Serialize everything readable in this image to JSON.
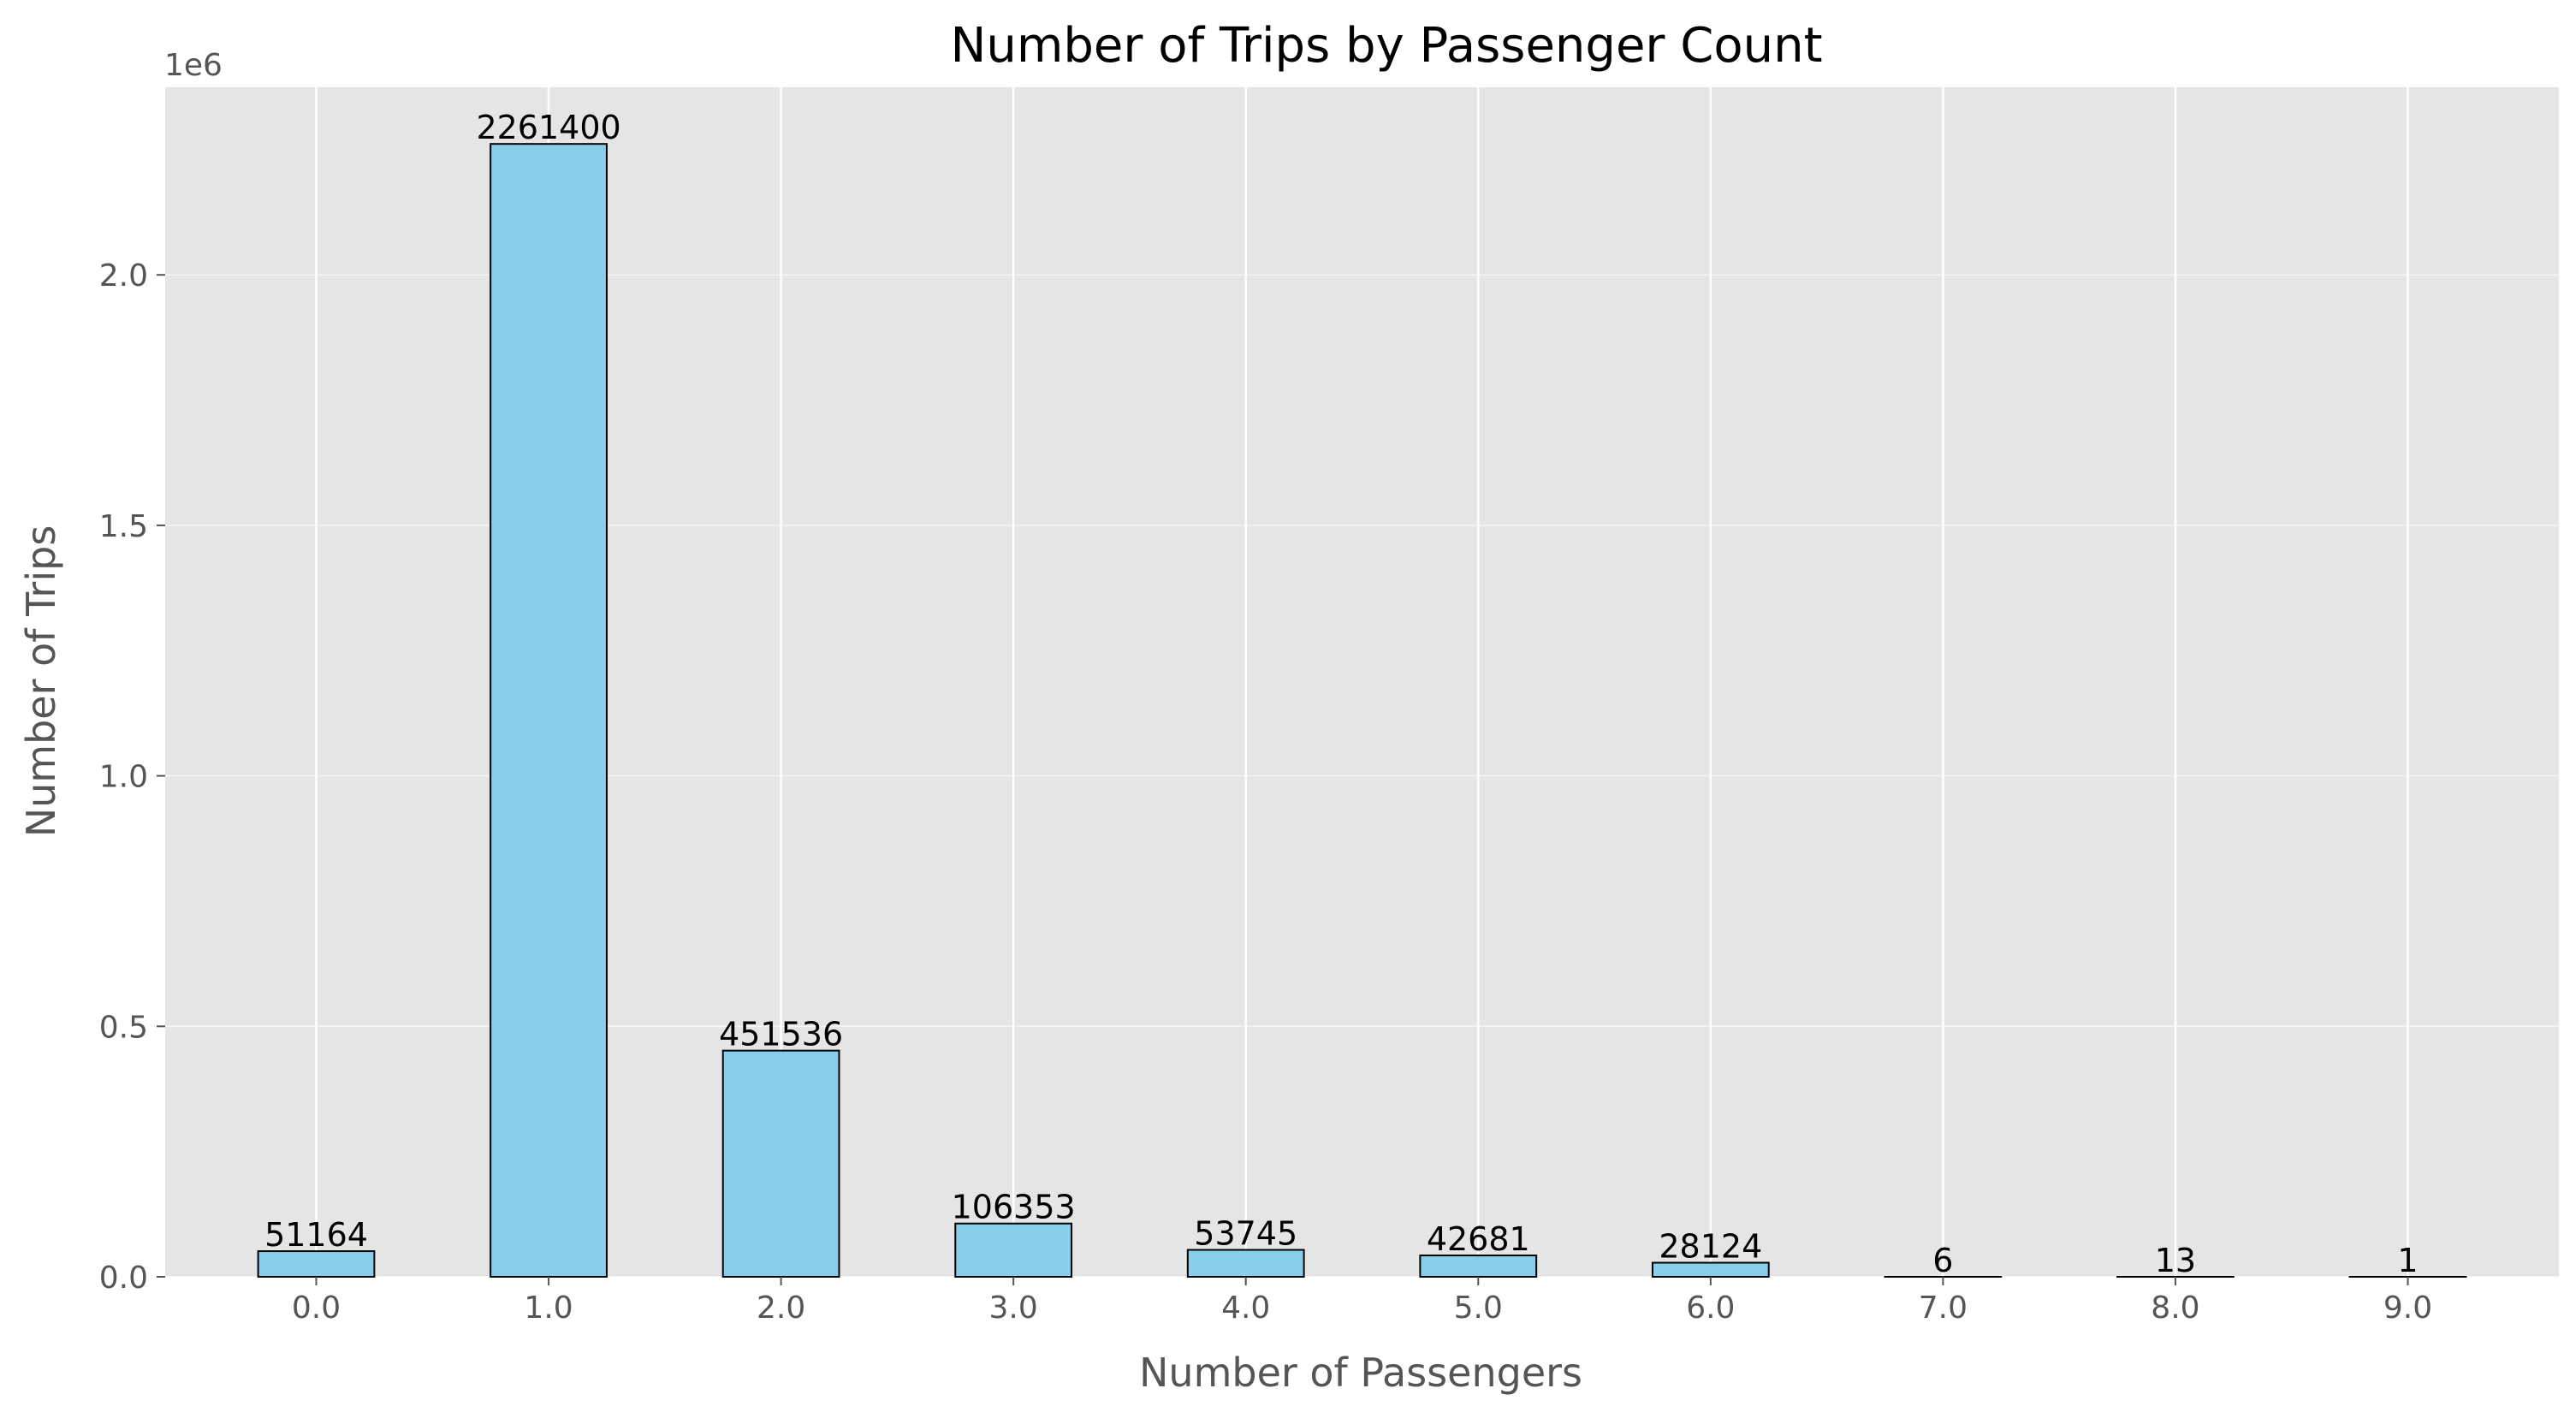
{
  "chart_data": {
    "type": "bar",
    "title": "Number of Trips by Passenger Count",
    "xlabel": "Number of Passengers",
    "ylabel": "Number of Trips",
    "y_offset_label": "1e6",
    "categories": [
      "0.0",
      "1.0",
      "2.0",
      "3.0",
      "4.0",
      "5.0",
      "6.0",
      "7.0",
      "8.0",
      "9.0"
    ],
    "values": [
      51164,
      2261400,
      451536,
      106353,
      53745,
      42681,
      28124,
      6,
      13,
      1
    ],
    "data_labels": [
      "51164",
      "2261400",
      "451536",
      "106353",
      "53745",
      "42681",
      "28124",
      "6",
      "13",
      "1"
    ],
    "ylim": [
      0,
      2374470
    ],
    "yticks": [
      0,
      500000,
      1000000,
      1500000,
      2000000
    ],
    "ytick_labels": [
      "0.0",
      "0.5",
      "1.0",
      "1.5",
      "2.0"
    ],
    "grid": true,
    "colors": {
      "bar_fill": "#87ceeb",
      "bar_edge": "#000000",
      "plot_background": "#e5e5e5",
      "grid": "#ffffff",
      "tick_text": "#555555",
      "label_text": "#555555",
      "title_text": "#000000"
    }
  }
}
